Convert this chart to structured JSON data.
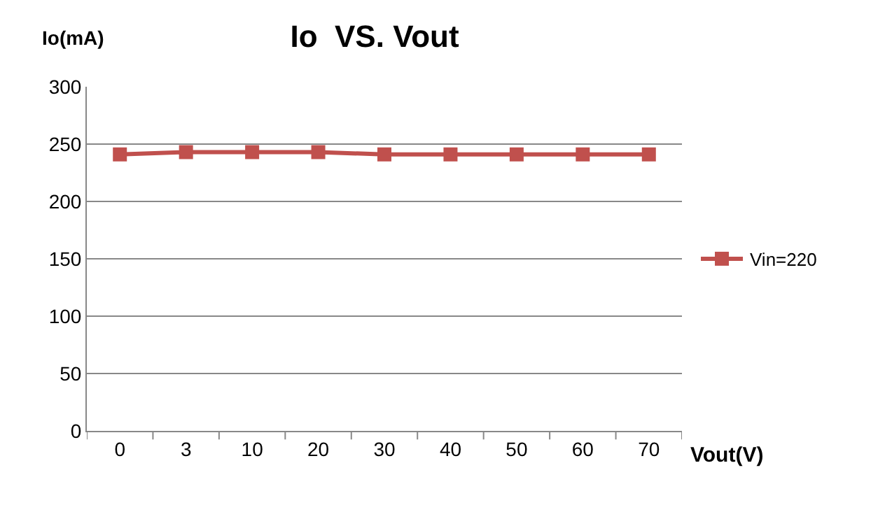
{
  "chart_data": {
    "type": "line",
    "title": "Io  VS. Vout",
    "xlabel": "Vout(V)",
    "ylabel": "Io(mA)",
    "categories": [
      "0",
      "3",
      "10",
      "20",
      "30",
      "40",
      "50",
      "60",
      "70"
    ],
    "series": [
      {
        "name": "Vin=220",
        "color": "#c0504d",
        "values": [
          241,
          243,
          243,
          243,
          241,
          241,
          241,
          241,
          241
        ]
      }
    ],
    "ylim": [
      0,
      300
    ],
    "yticks": [
      0,
      50,
      100,
      150,
      200,
      250,
      300
    ],
    "grid": "y",
    "legend": "right",
    "marker": "square",
    "line_style": "solid"
  }
}
